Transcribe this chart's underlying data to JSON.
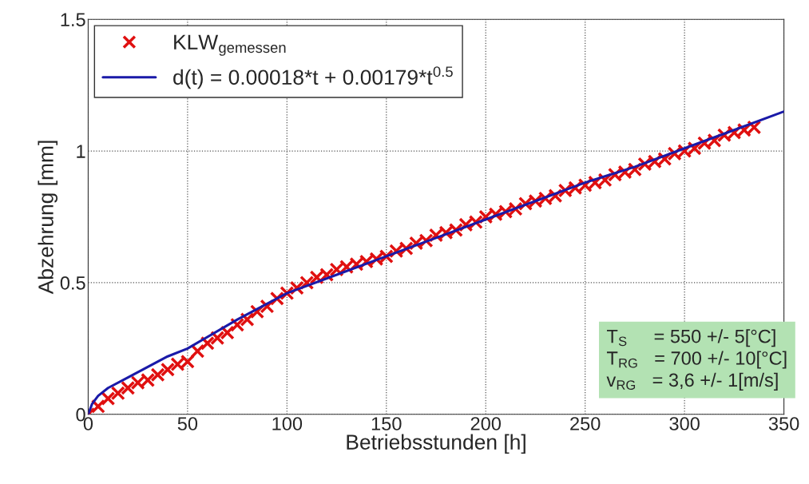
{
  "chart_data": {
    "type": "scatter",
    "xlabel": "Betriebsstunden [h]",
    "ylabel": "Abzehrung [mm]",
    "xlim": [
      0,
      350
    ],
    "xticks": [
      0,
      50,
      100,
      150,
      200,
      250,
      300,
      350
    ],
    "ylim": [
      0,
      1.5
    ],
    "yticks": [
      0,
      0.5,
      1,
      1.5
    ],
    "grid": true,
    "legend": "top left",
    "series": [
      {
        "name": "KLW$_{gemessen}$",
        "marker": "cross",
        "color": "#e01010",
        "x": [
          0,
          5,
          10,
          15,
          20,
          25,
          30,
          35,
          40,
          45,
          50,
          55,
          60,
          65,
          70,
          75,
          80,
          85,
          90,
          95,
          100,
          105,
          110,
          115,
          120,
          125,
          130,
          135,
          140,
          145,
          150,
          155,
          160,
          165,
          170,
          175,
          180,
          185,
          190,
          195,
          200,
          205,
          210,
          215,
          220,
          225,
          230,
          235,
          240,
          245,
          250,
          255,
          260,
          265,
          270,
          275,
          280,
          285,
          290,
          295,
          300,
          305,
          310,
          315,
          320,
          325,
          330,
          335
        ],
        "values": [
          0.0,
          0.03,
          0.06,
          0.08,
          0.1,
          0.12,
          0.13,
          0.15,
          0.17,
          0.19,
          0.2,
          0.24,
          0.27,
          0.29,
          0.31,
          0.34,
          0.36,
          0.39,
          0.41,
          0.44,
          0.46,
          0.48,
          0.5,
          0.52,
          0.53,
          0.55,
          0.56,
          0.57,
          0.58,
          0.59,
          0.6,
          0.62,
          0.63,
          0.65,
          0.66,
          0.68,
          0.69,
          0.7,
          0.72,
          0.73,
          0.75,
          0.76,
          0.77,
          0.78,
          0.8,
          0.81,
          0.82,
          0.83,
          0.85,
          0.86,
          0.87,
          0.88,
          0.89,
          0.91,
          0.92,
          0.93,
          0.95,
          0.96,
          0.97,
          0.99,
          1.0,
          1.01,
          1.03,
          1.04,
          1.06,
          1.07,
          1.08,
          1.09
        ]
      },
      {
        "name": "d(t) = 0.00018*t + 0.00179*t$^{0.5}$",
        "type": "line",
        "marker": "none",
        "line_style": "solid",
        "color": "#1a1aa8",
        "x": [
          0,
          2,
          5,
          10,
          20,
          30,
          40,
          50,
          75,
          100,
          125,
          150,
          175,
          200,
          225,
          250,
          275,
          300,
          325,
          350
        ],
        "values": [
          0,
          0.04,
          0.07,
          0.1,
          0.14,
          0.18,
          0.22,
          0.25,
          0.36,
          0.46,
          0.53,
          0.6,
          0.67,
          0.74,
          0.81,
          0.88,
          0.94,
          1.01,
          1.08,
          1.15
        ]
      }
    ],
    "annotations": [
      "T$_{S}$     = 550 +/- 5[°C]",
      "T$_{RG}$   = 700 +/- 10[°C]",
      "v$_{RG}$   = 3,6 +/- 1[m/s]"
    ]
  }
}
